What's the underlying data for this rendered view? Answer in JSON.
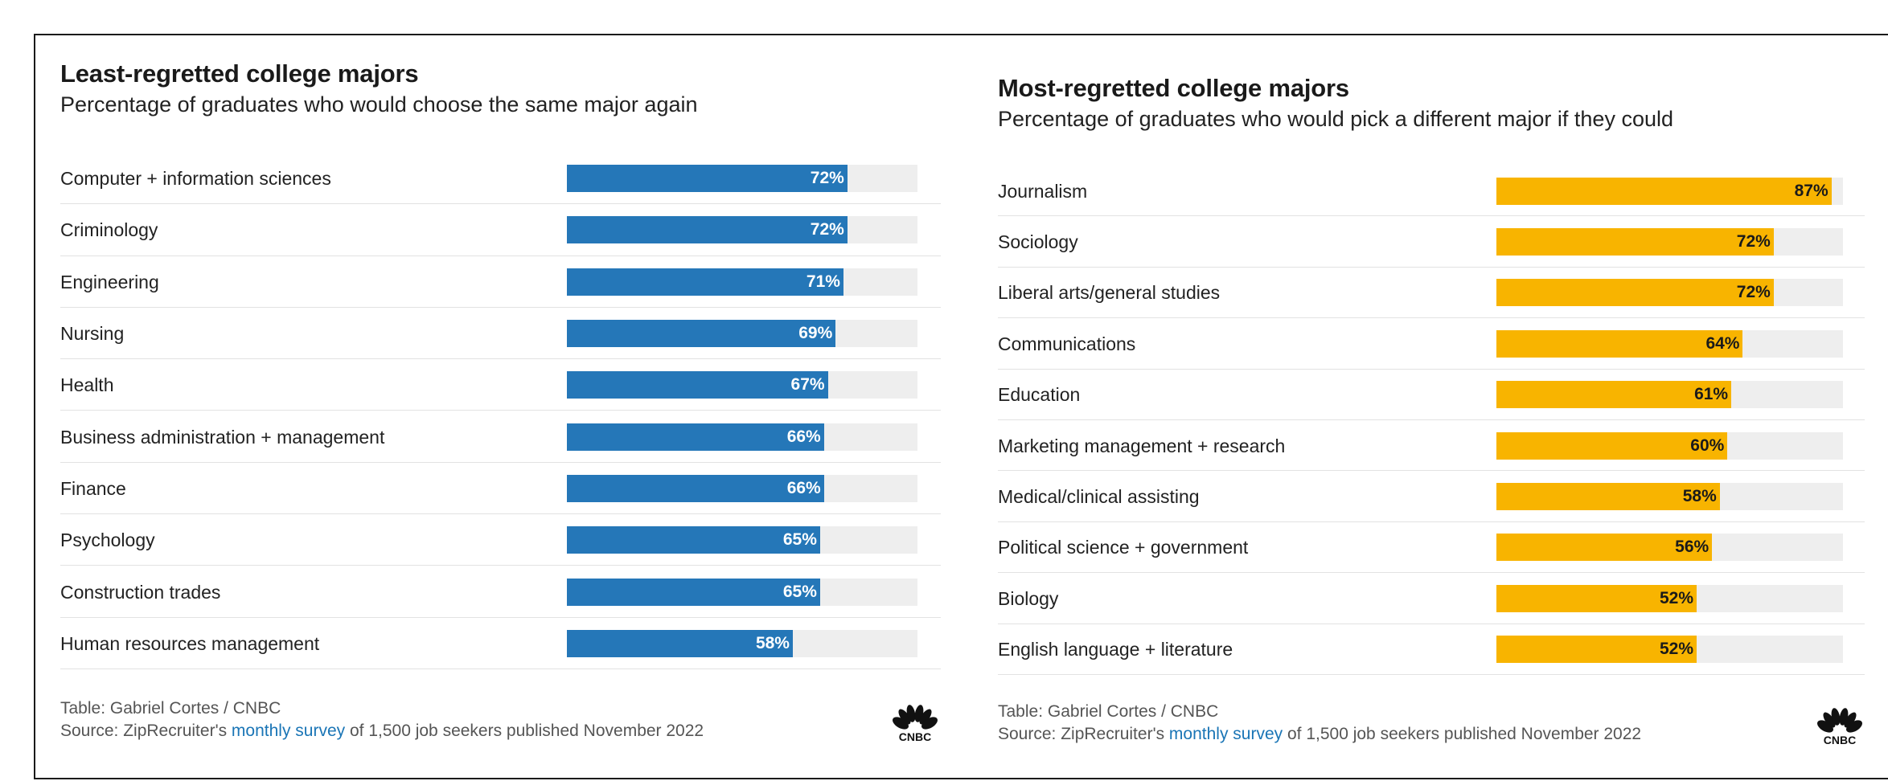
{
  "chart_data": [
    {
      "type": "bar",
      "orientation": "horizontal",
      "title": "Least-regretted college majors",
      "subtitle": "Percentage of graduates who would choose the same major again",
      "categories": [
        "Computer + information sciences",
        "Criminology",
        "Engineering",
        "Nursing",
        "Health",
        "Business administration + management",
        "Finance",
        "Psychology",
        "Construction trades",
        "Human resources management"
      ],
      "values": [
        72,
        72,
        71,
        69,
        67,
        66,
        66,
        65,
        65,
        58
      ],
      "value_labels": [
        "72%",
        "72%",
        "71%",
        "69%",
        "67%",
        "66%",
        "66%",
        "65%",
        "65%",
        "58%"
      ],
      "xlim": [
        0,
        90
      ],
      "color": "#2577b8",
      "footer": {
        "credit": "Table: Gabriel Cortes / CNBC",
        "source_prefix": "Source: ZipRecruiter's ",
        "source_link": "monthly survey",
        "source_suffix": " of 1,500 job seekers published November 2022"
      },
      "logo": "CNBC"
    },
    {
      "type": "bar",
      "orientation": "horizontal",
      "title": "Most-regretted college majors",
      "subtitle": "Percentage of graduates who would pick a different major if they could",
      "categories": [
        "Journalism",
        "Sociology",
        "Liberal arts/general studies",
        "Communications",
        "Education",
        "Marketing management + research",
        "Medical/clinical assisting",
        "Political science + government",
        "Biology",
        "English language + literature"
      ],
      "values": [
        87,
        72,
        72,
        64,
        61,
        60,
        58,
        56,
        52,
        52
      ],
      "value_labels": [
        "87%",
        "72%",
        "72%",
        "64%",
        "61%",
        "60%",
        "58%",
        "56%",
        "52%",
        "52%"
      ],
      "xlim": [
        0,
        90
      ],
      "color": "#f8b400",
      "footer": {
        "credit": "Table: Gabriel Cortes / CNBC",
        "source_prefix": "Source: ZipRecruiter's ",
        "source_link": "monthly survey",
        "source_suffix": " of 1,500 job seekers published November 2022"
      },
      "logo": "CNBC"
    }
  ]
}
